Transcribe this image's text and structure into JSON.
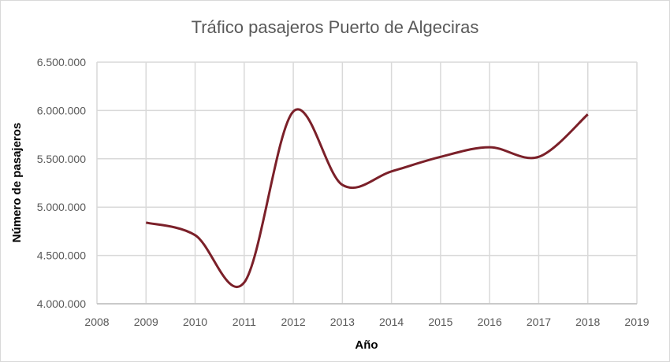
{
  "chart_data": {
    "type": "line",
    "title": "Tráfico pasajeros Puerto de Algeciras",
    "xlabel": "Año",
    "ylabel": "Número de pasajeros",
    "xlim": [
      2008,
      2019
    ],
    "ylim": [
      4000000,
      6500000
    ],
    "x_ticks": [
      "2008",
      "2009",
      "2010",
      "2011",
      "2012",
      "2013",
      "2014",
      "2015",
      "2016",
      "2017",
      "2018",
      "2019"
    ],
    "y_ticks": [
      "4.000.000",
      "4.500.000",
      "5.000.000",
      "5.500.000",
      "6.000.000",
      "6.500.000"
    ],
    "grid": true,
    "smooth": true,
    "line_color": "#7b2029",
    "x": [
      2009,
      2010,
      2011,
      2012,
      2013,
      2014,
      2015,
      2016,
      2017,
      2018
    ],
    "y": [
      4840000,
      4710000,
      4220000,
      5990000,
      5230000,
      5370000,
      5520000,
      5620000,
      5520000,
      5960000
    ]
  }
}
